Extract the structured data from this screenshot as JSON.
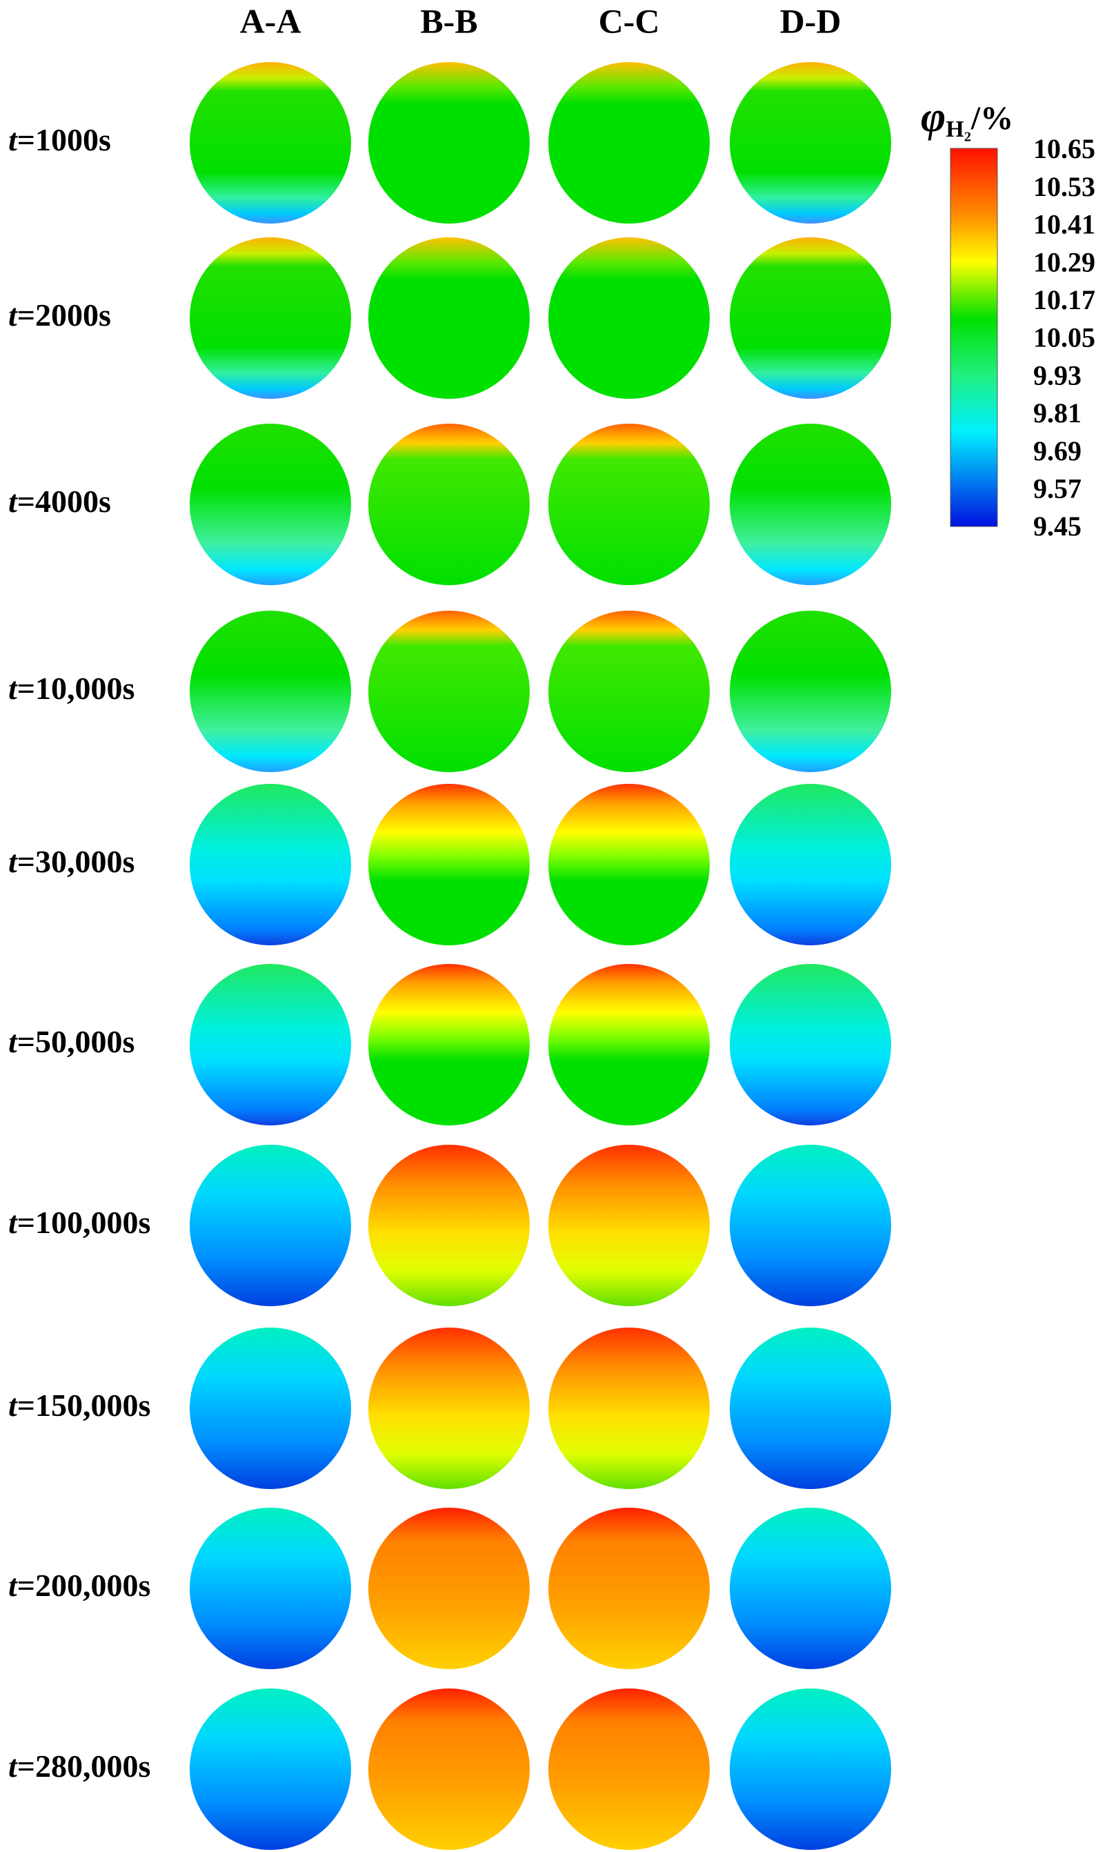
{
  "column_headers": [
    "A-A",
    "B-B",
    "C-C",
    "D-D"
  ],
  "variable": "t",
  "row_labels": [
    "=1000s",
    "=2000s",
    "=4000s",
    "=10,000s",
    "=30,000s",
    "=50,000s",
    "=100,000s",
    "=150,000s",
    "=200,000s",
    "=280,000s"
  ],
  "legend": {
    "title": {
      "symbol": "φ",
      "subscript": "H₂",
      "unit": "/%"
    },
    "ticks": [
      10.65,
      10.53,
      10.41,
      10.29,
      10.17,
      10.05,
      9.93,
      9.81,
      9.69,
      9.57,
      9.45
    ]
  }
}
